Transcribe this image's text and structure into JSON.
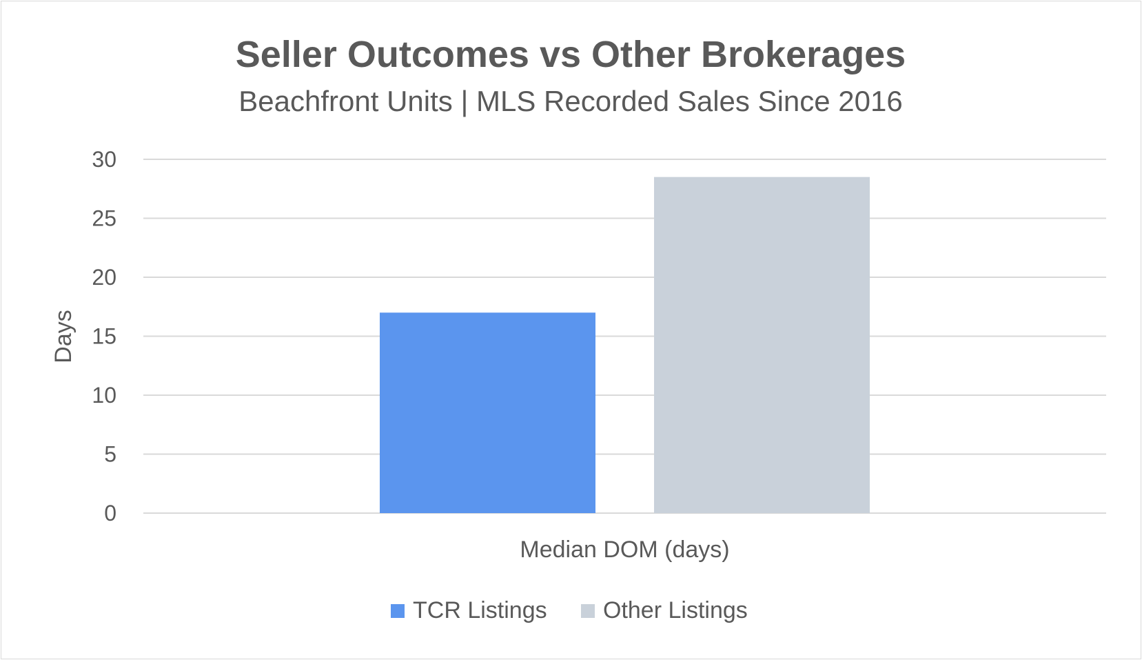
{
  "chart_data": {
    "type": "bar",
    "title": "Seller Outcomes vs Other Brokerages",
    "subtitle": "Beachfront Units | MLS Recorded Sales Since 2016",
    "xlabel": "",
    "ylabel": "Days",
    "categories": [
      "Median DOM (days)"
    ],
    "series": [
      {
        "name": "TCR Listings",
        "values": [
          17
        ],
        "color": "#5B95EE"
      },
      {
        "name": "Other Listings",
        "values": [
          28.5
        ],
        "color": "#C9D1DA"
      }
    ],
    "ylim": [
      0,
      30
    ],
    "yticks": [
      "0",
      "5",
      "10",
      "15",
      "20",
      "25",
      "30"
    ],
    "grid": true,
    "legend_position": "bottom"
  }
}
